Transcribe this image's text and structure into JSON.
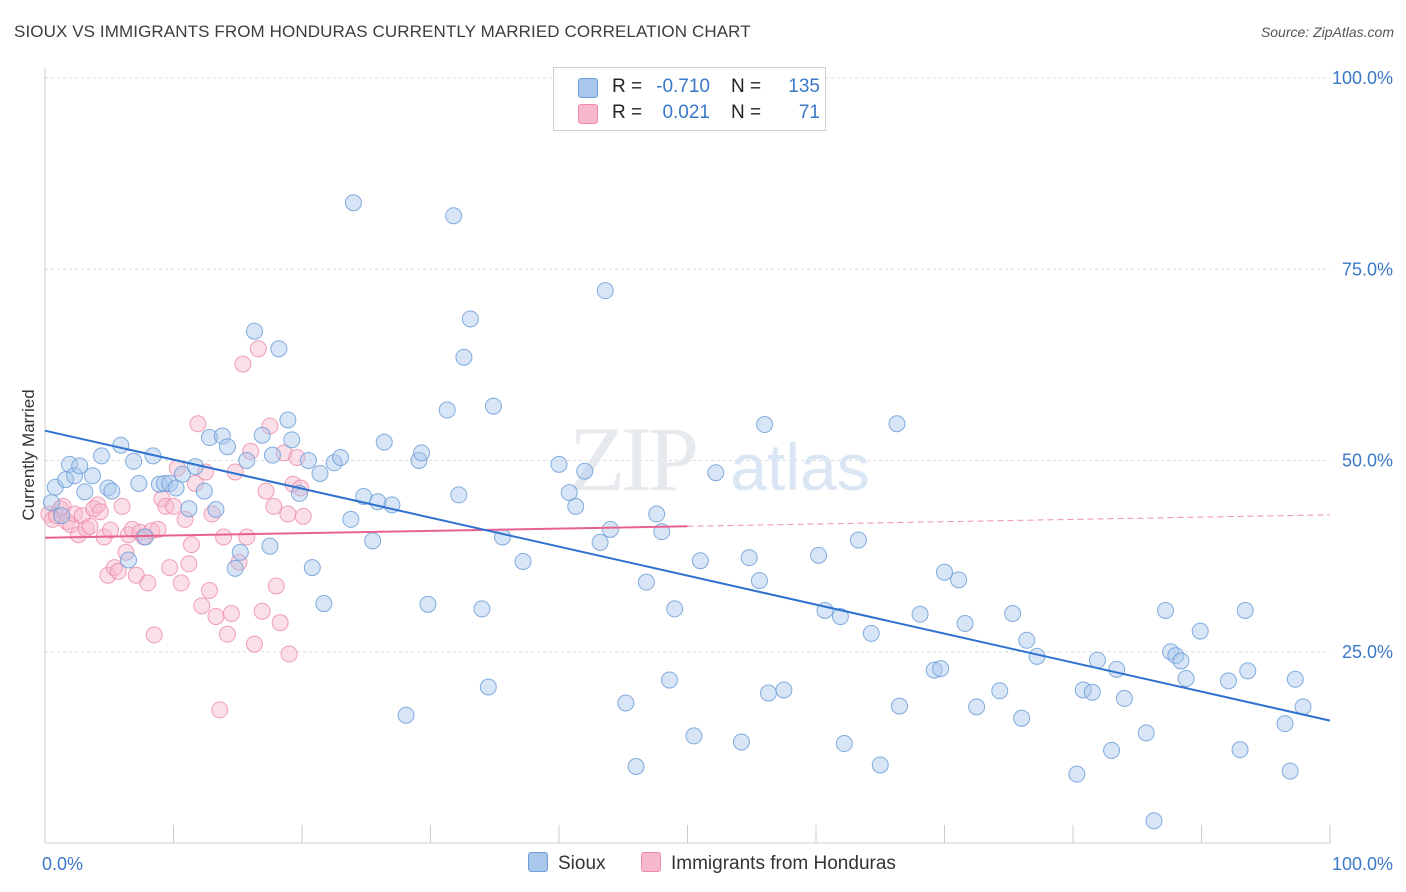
{
  "title": "SIOUX VS IMMIGRANTS FROM HONDURAS CURRENTLY MARRIED CORRELATION CHART",
  "source": "Source: ZipAtlas.com",
  "watermark": {
    "zip": "ZIP",
    "atlas": "atlas"
  },
  "legend": {
    "rows": [
      {
        "r_label": "R =",
        "r_value": "-0.710",
        "n_label": "N =",
        "n_value": "135"
      },
      {
        "r_label": "R =",
        "r_value": "0.021",
        "n_label": "N =",
        "n_value": "71"
      }
    ]
  },
  "colors": {
    "blue_fill": "#a9c6ec",
    "blue_stroke": "#6f9fd8",
    "blue_line": "#2f72d0",
    "pink_fill": "#f6b8cb",
    "pink_stroke": "#ec8aa8",
    "pink_line": "#e8628f",
    "grid": "#dddddd",
    "axis_text": "#3a78c9"
  },
  "chart_data": {
    "type": "scatter",
    "title": "SIOUX VS IMMIGRANTS FROM HONDURAS CURRENTLY MARRIED CORRELATION CHART",
    "xlabel": "",
    "ylabel": "Currently Married",
    "xlim": [
      0,
      100
    ],
    "ylim": [
      0,
      100
    ],
    "x_tick_labels": [
      "0.0%",
      "100.0%"
    ],
    "y_ticks": [
      25,
      50,
      75,
      100
    ],
    "y_tick_labels": [
      "25.0%",
      "50.0%",
      "75.0%",
      "100.0%"
    ],
    "grid": true,
    "legend_position": "bottom",
    "series": [
      {
        "name": "Sioux",
        "r": -0.71,
        "n": 135,
        "trend": {
          "x": [
            0,
            100
          ],
          "y": [
            53.9,
            16.0
          ]
        },
        "points": [
          [
            0.5,
            44.5
          ],
          [
            0.8,
            46.5
          ],
          [
            1.3,
            42.8
          ],
          [
            1.6,
            47.5
          ],
          [
            1.9,
            49.5
          ],
          [
            2.3,
            48.0
          ],
          [
            2.7,
            49.3
          ],
          [
            3.1,
            45.9
          ],
          [
            3.7,
            48.0
          ],
          [
            4.4,
            50.6
          ],
          [
            4.9,
            46.4
          ],
          [
            5.2,
            46.0
          ],
          [
            5.9,
            52.0
          ],
          [
            6.5,
            37.0
          ],
          [
            6.9,
            49.9
          ],
          [
            7.3,
            47.0
          ],
          [
            7.8,
            40.0
          ],
          [
            8.4,
            50.6
          ],
          [
            8.9,
            46.9
          ],
          [
            9.3,
            47.0
          ],
          [
            9.7,
            47.0
          ],
          [
            10.2,
            46.4
          ],
          [
            10.7,
            48.2
          ],
          [
            11.2,
            43.7
          ],
          [
            11.7,
            49.2
          ],
          [
            12.4,
            46.0
          ],
          [
            12.8,
            53.0
          ],
          [
            13.3,
            43.6
          ],
          [
            13.8,
            53.2
          ],
          [
            14.2,
            51.8
          ],
          [
            14.8,
            35.9
          ],
          [
            15.2,
            38.0
          ],
          [
            15.7,
            50.0
          ],
          [
            16.3,
            66.9
          ],
          [
            16.9,
            53.3
          ],
          [
            17.5,
            38.8
          ],
          [
            17.7,
            50.7
          ],
          [
            18.2,
            64.6
          ],
          [
            18.9,
            55.3
          ],
          [
            19.2,
            52.7
          ],
          [
            19.8,
            45.7
          ],
          [
            20.5,
            50.0
          ],
          [
            20.8,
            36.0
          ],
          [
            21.4,
            48.3
          ],
          [
            21.7,
            31.3
          ],
          [
            22.5,
            49.7
          ],
          [
            23.0,
            50.4
          ],
          [
            23.8,
            42.3
          ],
          [
            24.0,
            83.7
          ],
          [
            24.8,
            45.3
          ],
          [
            25.5,
            39.5
          ],
          [
            25.9,
            44.6
          ],
          [
            26.4,
            52.4
          ],
          [
            27.0,
            44.2
          ],
          [
            28.1,
            16.7
          ],
          [
            29.1,
            50.0
          ],
          [
            29.3,
            51.0
          ],
          [
            29.8,
            31.2
          ],
          [
            31.3,
            56.6
          ],
          [
            31.8,
            82.0
          ],
          [
            32.2,
            45.5
          ],
          [
            32.6,
            63.5
          ],
          [
            33.1,
            68.5
          ],
          [
            34.0,
            30.6
          ],
          [
            34.5,
            20.4
          ],
          [
            34.9,
            57.1
          ],
          [
            35.6,
            40.0
          ],
          [
            37.2,
            36.8
          ],
          [
            40.0,
            49.5
          ],
          [
            40.8,
            45.8
          ],
          [
            41.3,
            44.0
          ],
          [
            42.0,
            48.6
          ],
          [
            43.2,
            39.3
          ],
          [
            43.6,
            72.2
          ],
          [
            44.0,
            41.0
          ],
          [
            45.2,
            18.3
          ],
          [
            46.0,
            10.0
          ],
          [
            46.8,
            34.1
          ],
          [
            47.6,
            43.0
          ],
          [
            48.0,
            40.7
          ],
          [
            48.6,
            21.3
          ],
          [
            49.0,
            30.6
          ],
          [
            50.5,
            14.0
          ],
          [
            51.0,
            36.9
          ],
          [
            52.2,
            48.4
          ],
          [
            54.2,
            13.2
          ],
          [
            54.8,
            37.3
          ],
          [
            55.6,
            34.3
          ],
          [
            56.0,
            54.7
          ],
          [
            56.3,
            19.6
          ],
          [
            57.5,
            20.0
          ],
          [
            60.2,
            37.6
          ],
          [
            60.7,
            30.4
          ],
          [
            61.9,
            29.6
          ],
          [
            62.2,
            13.0
          ],
          [
            63.3,
            39.6
          ],
          [
            64.3,
            27.4
          ],
          [
            65.0,
            10.2
          ],
          [
            66.3,
            54.8
          ],
          [
            66.5,
            17.9
          ],
          [
            68.1,
            29.9
          ],
          [
            69.2,
            22.6
          ],
          [
            69.7,
            22.8
          ],
          [
            70.0,
            35.4
          ],
          [
            71.1,
            34.4
          ],
          [
            71.6,
            28.7
          ],
          [
            72.5,
            17.8
          ],
          [
            74.3,
            19.9
          ],
          [
            75.3,
            30.0
          ],
          [
            76.0,
            16.3
          ],
          [
            76.4,
            26.5
          ],
          [
            77.2,
            24.4
          ],
          [
            80.3,
            9.0
          ],
          [
            80.8,
            20.0
          ],
          [
            81.5,
            19.7
          ],
          [
            81.9,
            23.9
          ],
          [
            83.0,
            12.1
          ],
          [
            83.4,
            22.7
          ],
          [
            84.0,
            18.9
          ],
          [
            85.7,
            14.4
          ],
          [
            86.3,
            2.9
          ],
          [
            87.2,
            30.4
          ],
          [
            87.6,
            25.0
          ],
          [
            88.0,
            24.5
          ],
          [
            88.4,
            23.8
          ],
          [
            88.8,
            21.5
          ],
          [
            89.9,
            27.7
          ],
          [
            92.1,
            21.2
          ],
          [
            93.0,
            12.2
          ],
          [
            93.4,
            30.4
          ],
          [
            93.6,
            22.5
          ],
          [
            96.5,
            15.6
          ],
          [
            96.9,
            9.4
          ],
          [
            97.3,
            21.4
          ],
          [
            97.9,
            17.8
          ]
        ]
      },
      {
        "name": "Immigrants from Honduras",
        "r": 0.021,
        "n": 71,
        "trend": {
          "x": [
            0,
            50
          ],
          "y": [
            39.9,
            41.4
          ]
        },
        "trend_extension": {
          "x": [
            50,
            100
          ],
          "y": [
            41.4,
            42.9
          ]
        },
        "points": [
          [
            0.3,
            43.0
          ],
          [
            0.6,
            42.3
          ],
          [
            0.9,
            42.8
          ],
          [
            1.2,
            43.7
          ],
          [
            1.4,
            44.0
          ],
          [
            1.7,
            42.0
          ],
          [
            2.0,
            41.6
          ],
          [
            2.3,
            43.0
          ],
          [
            2.6,
            40.3
          ],
          [
            2.9,
            42.8
          ],
          [
            3.2,
            41.1
          ],
          [
            3.5,
            41.4
          ],
          [
            3.8,
            43.7
          ],
          [
            4.1,
            44.2
          ],
          [
            4.3,
            43.3
          ],
          [
            4.6,
            40.0
          ],
          [
            4.9,
            35.0
          ],
          [
            5.1,
            40.9
          ],
          [
            5.4,
            36.0
          ],
          [
            5.7,
            35.5
          ],
          [
            6.0,
            44.0
          ],
          [
            6.3,
            38.0
          ],
          [
            6.5,
            40.3
          ],
          [
            6.8,
            41.0
          ],
          [
            7.1,
            35.0
          ],
          [
            7.4,
            40.6
          ],
          [
            7.7,
            40.0
          ],
          [
            8.0,
            34.0
          ],
          [
            8.3,
            40.8
          ],
          [
            8.5,
            27.2
          ],
          [
            8.8,
            41.0
          ],
          [
            9.1,
            45.0
          ],
          [
            9.4,
            44.0
          ],
          [
            9.7,
            36.0
          ],
          [
            10.0,
            44.0
          ],
          [
            10.3,
            49.0
          ],
          [
            10.6,
            34.0
          ],
          [
            10.9,
            42.3
          ],
          [
            11.2,
            36.5
          ],
          [
            11.4,
            39.0
          ],
          [
            11.7,
            47.0
          ],
          [
            11.9,
            54.8
          ],
          [
            12.2,
            31.0
          ],
          [
            12.5,
            48.5
          ],
          [
            12.8,
            33.0
          ],
          [
            13.0,
            43.0
          ],
          [
            13.3,
            29.6
          ],
          [
            13.6,
            17.4
          ],
          [
            13.9,
            40.0
          ],
          [
            14.2,
            27.3
          ],
          [
            14.5,
            30.0
          ],
          [
            14.8,
            48.5
          ],
          [
            15.1,
            36.7
          ],
          [
            15.4,
            62.6
          ],
          [
            15.7,
            40.0
          ],
          [
            16.0,
            51.2
          ],
          [
            16.3,
            26.0
          ],
          [
            16.6,
            64.6
          ],
          [
            16.9,
            30.3
          ],
          [
            17.2,
            46.0
          ],
          [
            17.5,
            54.5
          ],
          [
            17.8,
            44.0
          ],
          [
            18.0,
            33.6
          ],
          [
            18.3,
            28.8
          ],
          [
            18.6,
            51.0
          ],
          [
            18.9,
            43.0
          ],
          [
            19.0,
            24.7
          ],
          [
            19.3,
            46.9
          ],
          [
            19.6,
            50.4
          ],
          [
            19.9,
            46.4
          ],
          [
            20.1,
            42.7
          ]
        ]
      }
    ]
  },
  "bottom_legend": [
    {
      "label": "Sioux"
    },
    {
      "label": "Immigrants from Honduras"
    }
  ]
}
